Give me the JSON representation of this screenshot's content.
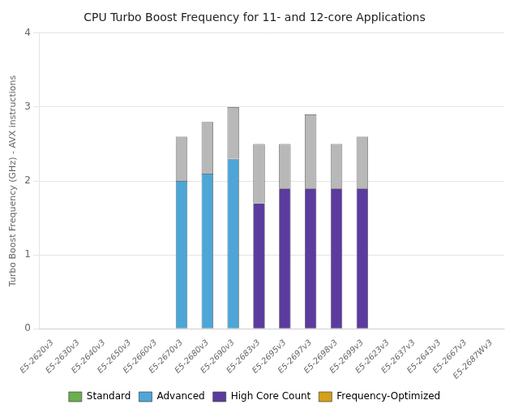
{
  "chart_data": {
    "type": "bar",
    "title": "CPU Turbo Boost Frequency for 11- and 12-core Applications",
    "ylabel": "Turbo Boost Frequency (GHz) - AVX instructions",
    "categories": [
      "E5-2620v3",
      "E5-2630v3",
      "E5-2640v3",
      "E5-2650v3",
      "E5-2660v3",
      "E5-2670v3",
      "E5-2680v3",
      "E5-2690v3",
      "E5-2683v3",
      "E5-2695v3",
      "E5-2697v3",
      "E5-2698v3",
      "E5-2699v3",
      "E5-2623v3",
      "E5-2637v3",
      "E5-2643v3",
      "E5-2667v3",
      "E5-2687Wv3"
    ],
    "stacked": true,
    "series": [
      {
        "values": [
          0,
          0,
          0,
          0,
          0,
          2.0,
          2.1,
          2.3,
          1.7,
          1.9,
          1.9,
          1.9,
          1.9,
          0,
          0,
          0,
          0,
          0
        ],
        "colors": [
          null,
          null,
          null,
          null,
          null,
          "#4da6d7",
          "#4da6d7",
          "#4da6d7",
          "#5b3b9e",
          "#5b3b9e",
          "#5b3b9e",
          "#5b3b9e",
          "#5b3b9e",
          null,
          null,
          null,
          null,
          null
        ]
      },
      {
        "values": [
          0,
          0,
          0,
          0,
          0,
          0.6,
          0.7,
          0.7,
          0.8,
          0.6,
          1.0,
          0.6,
          0.7,
          0,
          0,
          0,
          0,
          0
        ],
        "color": "#b8b8b8"
      }
    ],
    "legend_items": [
      {
        "name": "Standard",
        "color": "#6ab04c"
      },
      {
        "name": "Advanced",
        "color": "#4da6d7"
      },
      {
        "name": "High Core Count",
        "color": "#5b3b9e"
      },
      {
        "name": "Frequency-Optimized",
        "color": "#d4a017"
      }
    ],
    "legend": "bottom",
    "ylim": [
      0,
      4
    ],
    "yticks": [
      0,
      1,
      2,
      3,
      4
    ],
    "grid": true
  }
}
